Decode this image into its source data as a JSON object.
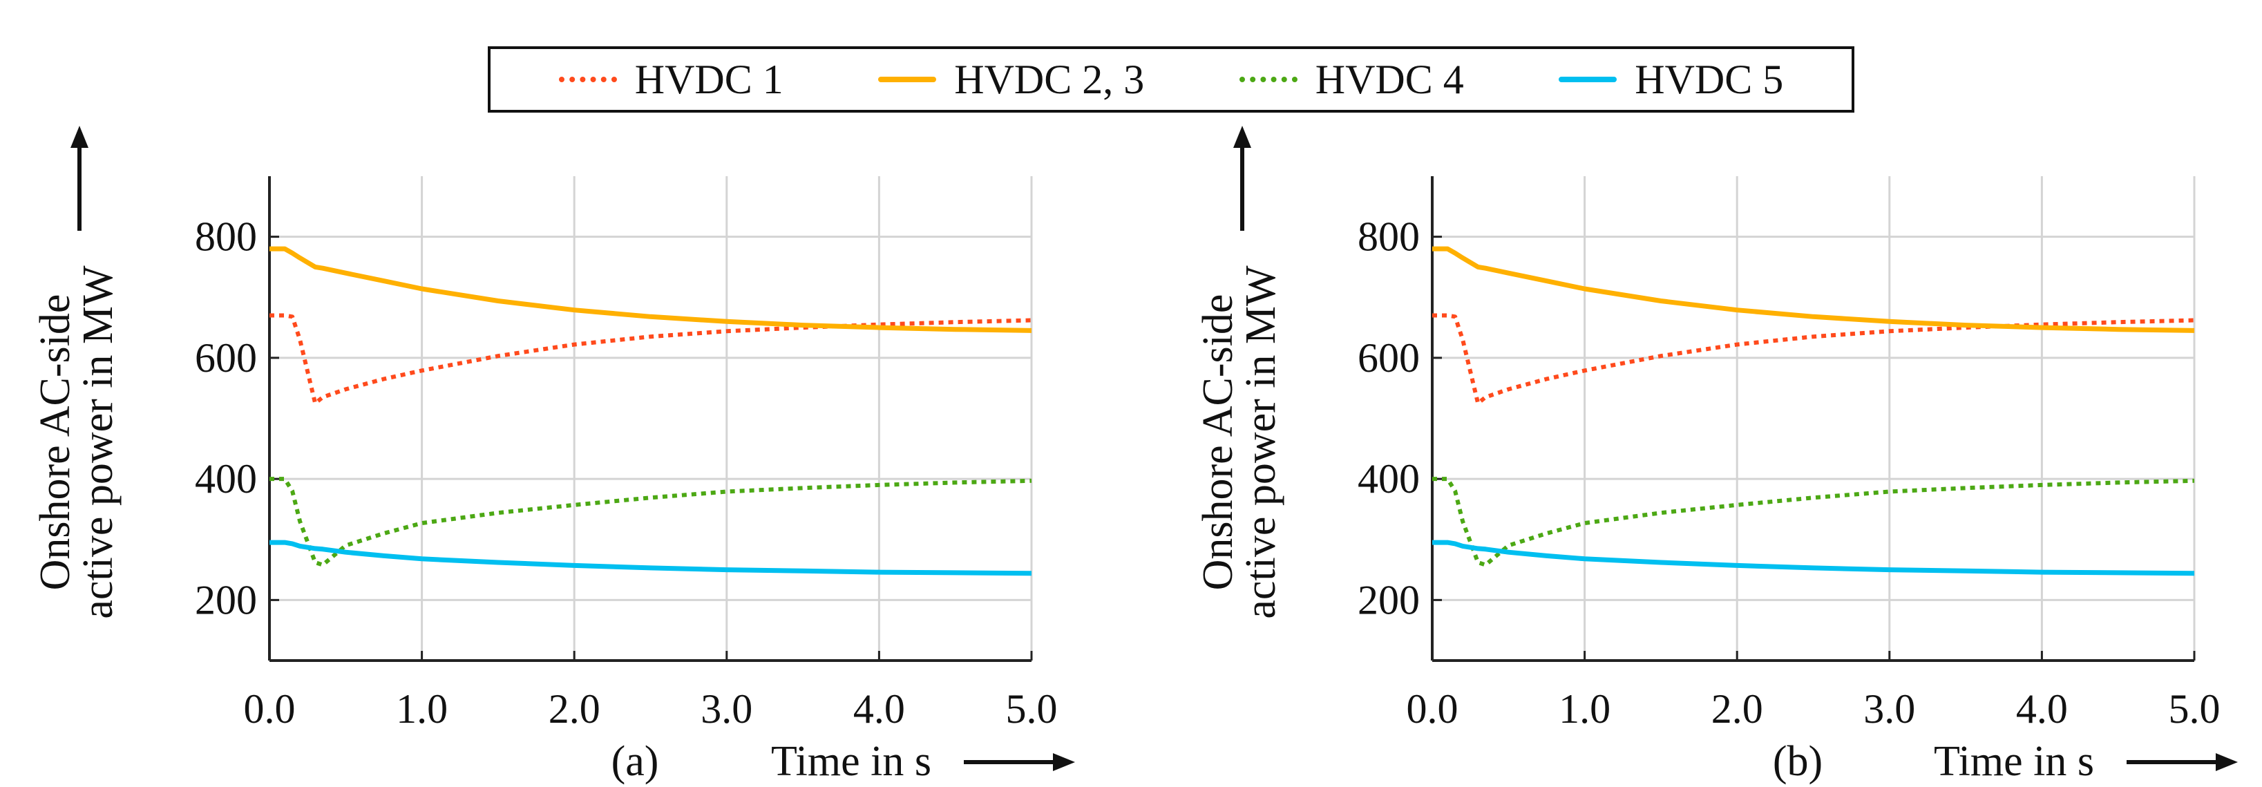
{
  "legend": [
    {
      "label": "HVDC 1",
      "color": "#ff4a1c",
      "style": "dotted"
    },
    {
      "label": "HVDC 2, 3",
      "color": "#ffb000",
      "style": "solid"
    },
    {
      "label": "HVDC 4",
      "color": "#4ca814",
      "style": "dotted"
    },
    {
      "label": "HVDC 5",
      "color": "#00bff0",
      "style": "solid"
    }
  ],
  "chart_data": [
    {
      "type": "line",
      "panel_label": "(a)",
      "xlabel": "Time in s",
      "ylabel_lines": [
        "Onshore AC-side",
        "active power in MW"
      ],
      "xlim": [
        0,
        5
      ],
      "ylim": [
        100,
        900
      ],
      "xticks": [
        0,
        1,
        2,
        3,
        4,
        5
      ],
      "xtick_labels": [
        "0.0",
        "1.0",
        "2.0",
        "3.0",
        "4.0",
        "5.0"
      ],
      "yticks": [
        200,
        400,
        600,
        800
      ],
      "ytick_labels": [
        "200",
        "400",
        "600",
        "800"
      ],
      "grid": true,
      "x": [
        0,
        0.1,
        0.15,
        0.2,
        0.3,
        0.35,
        0.5,
        0.75,
        1,
        1.5,
        2,
        2.5,
        3,
        3.5,
        4,
        4.5,
        5
      ],
      "series": [
        {
          "name": "HVDC 1",
          "values": [
            670,
            670,
            668,
            630,
            525,
            535,
            548,
            565,
            579,
            603,
            622,
            635,
            644,
            650,
            655,
            659,
            662
          ]
        },
        {
          "name": "HVDC 2, 3",
          "values": [
            780,
            780,
            773,
            765,
            750,
            748,
            740,
            727,
            714,
            694,
            679,
            668,
            660,
            654,
            650,
            647,
            645
          ]
        },
        {
          "name": "HVDC 4",
          "values": [
            400,
            400,
            380,
            330,
            262,
            258,
            290,
            310,
            327,
            344,
            357,
            369,
            379,
            385,
            390,
            394,
            397
          ]
        },
        {
          "name": "HVDC 5",
          "values": [
            295,
            295,
            293,
            289,
            285,
            284,
            279,
            273,
            268,
            262,
            257,
            253,
            250,
            248,
            246,
            245,
            244
          ]
        }
      ]
    },
    {
      "type": "line",
      "panel_label": "(b)",
      "xlabel": "Time in s",
      "ylabel_lines": [
        "Onshore AC-side",
        "active power in MW"
      ],
      "xlim": [
        0,
        5
      ],
      "ylim": [
        100,
        900
      ],
      "xticks": [
        0,
        1,
        2,
        3,
        4,
        5
      ],
      "xtick_labels": [
        "0.0",
        "1.0",
        "2.0",
        "3.0",
        "4.0",
        "5.0"
      ],
      "yticks": [
        200,
        400,
        600,
        800
      ],
      "ytick_labels": [
        "200",
        "400",
        "600",
        "800"
      ],
      "grid": true,
      "x": [
        0,
        0.1,
        0.15,
        0.2,
        0.3,
        0.35,
        0.5,
        0.75,
        1,
        1.5,
        2,
        2.5,
        3,
        3.5,
        4,
        4.5,
        5
      ],
      "series": [
        {
          "name": "HVDC 1",
          "values": [
            670,
            670,
            668,
            630,
            525,
            535,
            548,
            565,
            579,
            603,
            622,
            635,
            644,
            650,
            655,
            659,
            662
          ]
        },
        {
          "name": "HVDC 2, 3",
          "values": [
            780,
            780,
            773,
            765,
            750,
            748,
            740,
            727,
            714,
            694,
            679,
            668,
            660,
            654,
            650,
            647,
            645
          ]
        },
        {
          "name": "HVDC 4",
          "values": [
            400,
            400,
            380,
            330,
            262,
            258,
            290,
            310,
            327,
            344,
            357,
            369,
            379,
            385,
            390,
            394,
            397
          ]
        },
        {
          "name": "HVDC 5",
          "values": [
            295,
            295,
            293,
            289,
            285,
            284,
            279,
            273,
            268,
            262,
            257,
            253,
            250,
            248,
            246,
            245,
            244
          ]
        }
      ]
    }
  ]
}
